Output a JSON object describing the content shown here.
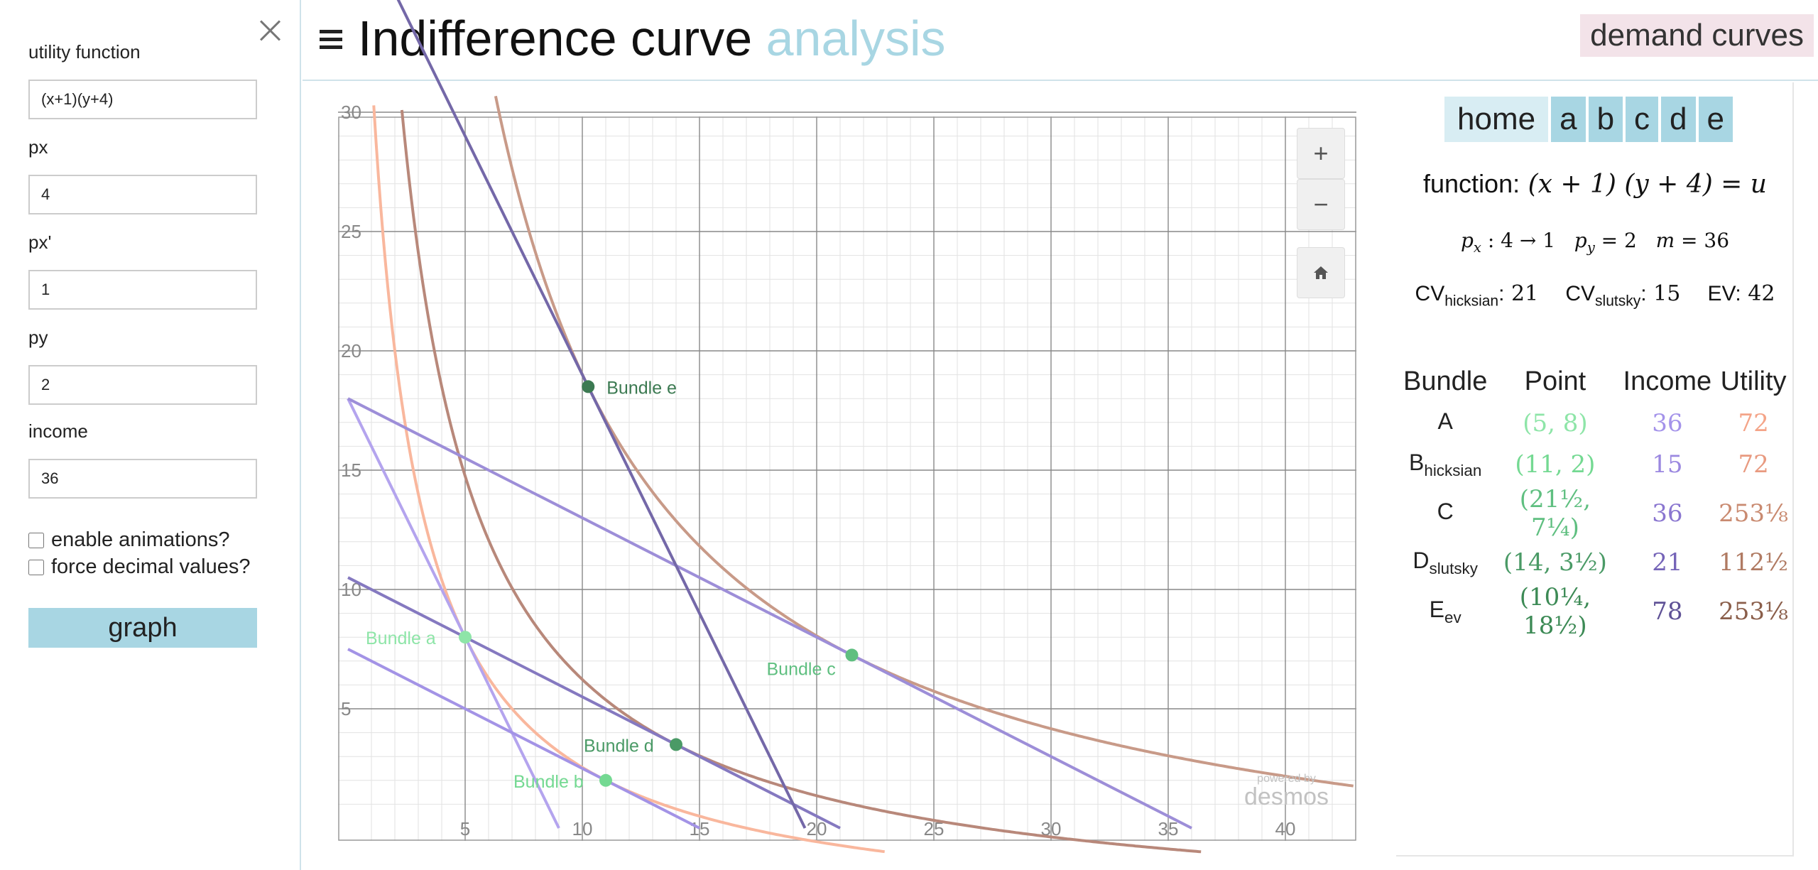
{
  "sidebar": {
    "fields": [
      {
        "label": "utility function",
        "value": "(x+1)(y+4)"
      },
      {
        "label": "px",
        "value": "4"
      },
      {
        "label": "px'",
        "value": "1"
      },
      {
        "label": "py",
        "value": "2"
      },
      {
        "label": "income",
        "value": "36"
      }
    ],
    "checkboxes": [
      {
        "label": "enable animations?",
        "checked": false
      },
      {
        "label": "force decimal values?",
        "checked": false
      }
    ],
    "graph_button": "graph"
  },
  "header": {
    "title": "Indifference curve",
    "title_accent": "analysis",
    "demand_button": "demand curves",
    "accent_color": "#a8d6e3"
  },
  "graph": {
    "x_ticks": [
      "5",
      "10",
      "15",
      "20",
      "25",
      "30",
      "35",
      "40"
    ],
    "y_ticks": [
      "5",
      "10",
      "15",
      "20",
      "25",
      "30"
    ],
    "zoom_in": "+",
    "zoom_out": "−",
    "home_icon": "home-icon",
    "watermark_top": "powered by",
    "watermark_bottom": "desmos",
    "bundles": [
      {
        "label": "Bundle a",
        "x": 5,
        "y": 8,
        "color": "#8ee5a8"
      },
      {
        "label": "Bundle b",
        "x": 11,
        "y": 2,
        "color": "#74d992"
      },
      {
        "label": "Bundle c",
        "x": 21.5,
        "y": 7.25,
        "color": "#5fbf80"
      },
      {
        "label": "Bundle d",
        "x": 14,
        "y": 3.5,
        "color": "#4a9a66"
      },
      {
        "label": "Bundle e",
        "x": 10.25,
        "y": 18.5,
        "color": "#3c7a52"
      }
    ]
  },
  "right_panel": {
    "tabs": [
      "home",
      "a",
      "b",
      "c",
      "d",
      "e"
    ],
    "function_label": "function:",
    "function_expr": "(x + 1) (y + 4) = u",
    "prices": {
      "px_text": "4 → 1",
      "py_text": "2",
      "m_text": "36"
    },
    "cv_hicksian_label": "CV",
    "cv_hicksian_sub": "hicksian",
    "cv_hicksian_value": "21",
    "cv_slutsky_label": "CV",
    "cv_slutsky_sub": "slutsky",
    "cv_slutsky_value": "15",
    "ev_label": "EV",
    "ev_value": "42",
    "table_headers": [
      "Bundle",
      "Point",
      "Income",
      "Utility"
    ],
    "rows": [
      {
        "name": "A",
        "sub": "",
        "point": "(5, 8)",
        "income": "36",
        "utility": "72",
        "point_color": "#8ee5a8",
        "income_color": "#a493ea",
        "utility_color": "#f4a488"
      },
      {
        "name": "B",
        "sub": "hicksian",
        "point": "(11, 2)",
        "income": "15",
        "utility": "72",
        "point_color": "#74d992",
        "income_color": "#9b88e0",
        "utility_color": "#e89a80"
      },
      {
        "name": "C",
        "sub": "",
        "point": "(21½, 7¼)",
        "income": "36",
        "utility": "253⅛",
        "point_color": "#5fbf80",
        "income_color": "#8a76d0",
        "utility_color": "#c98a70"
      },
      {
        "name": "D",
        "sub": "slutsky",
        "point": "(14, 3½)",
        "income": "21",
        "utility": "112½",
        "point_color": "#4a9a66",
        "income_color": "#7564b8",
        "utility_color": "#b07a62"
      },
      {
        "name": "E",
        "sub": "ev",
        "point": "(10¼, 18½)",
        "income": "78",
        "utility": "253⅛",
        "point_color": "#3c8a55",
        "income_color": "#5f5296",
        "utility_color": "#8a5e4a"
      }
    ]
  }
}
